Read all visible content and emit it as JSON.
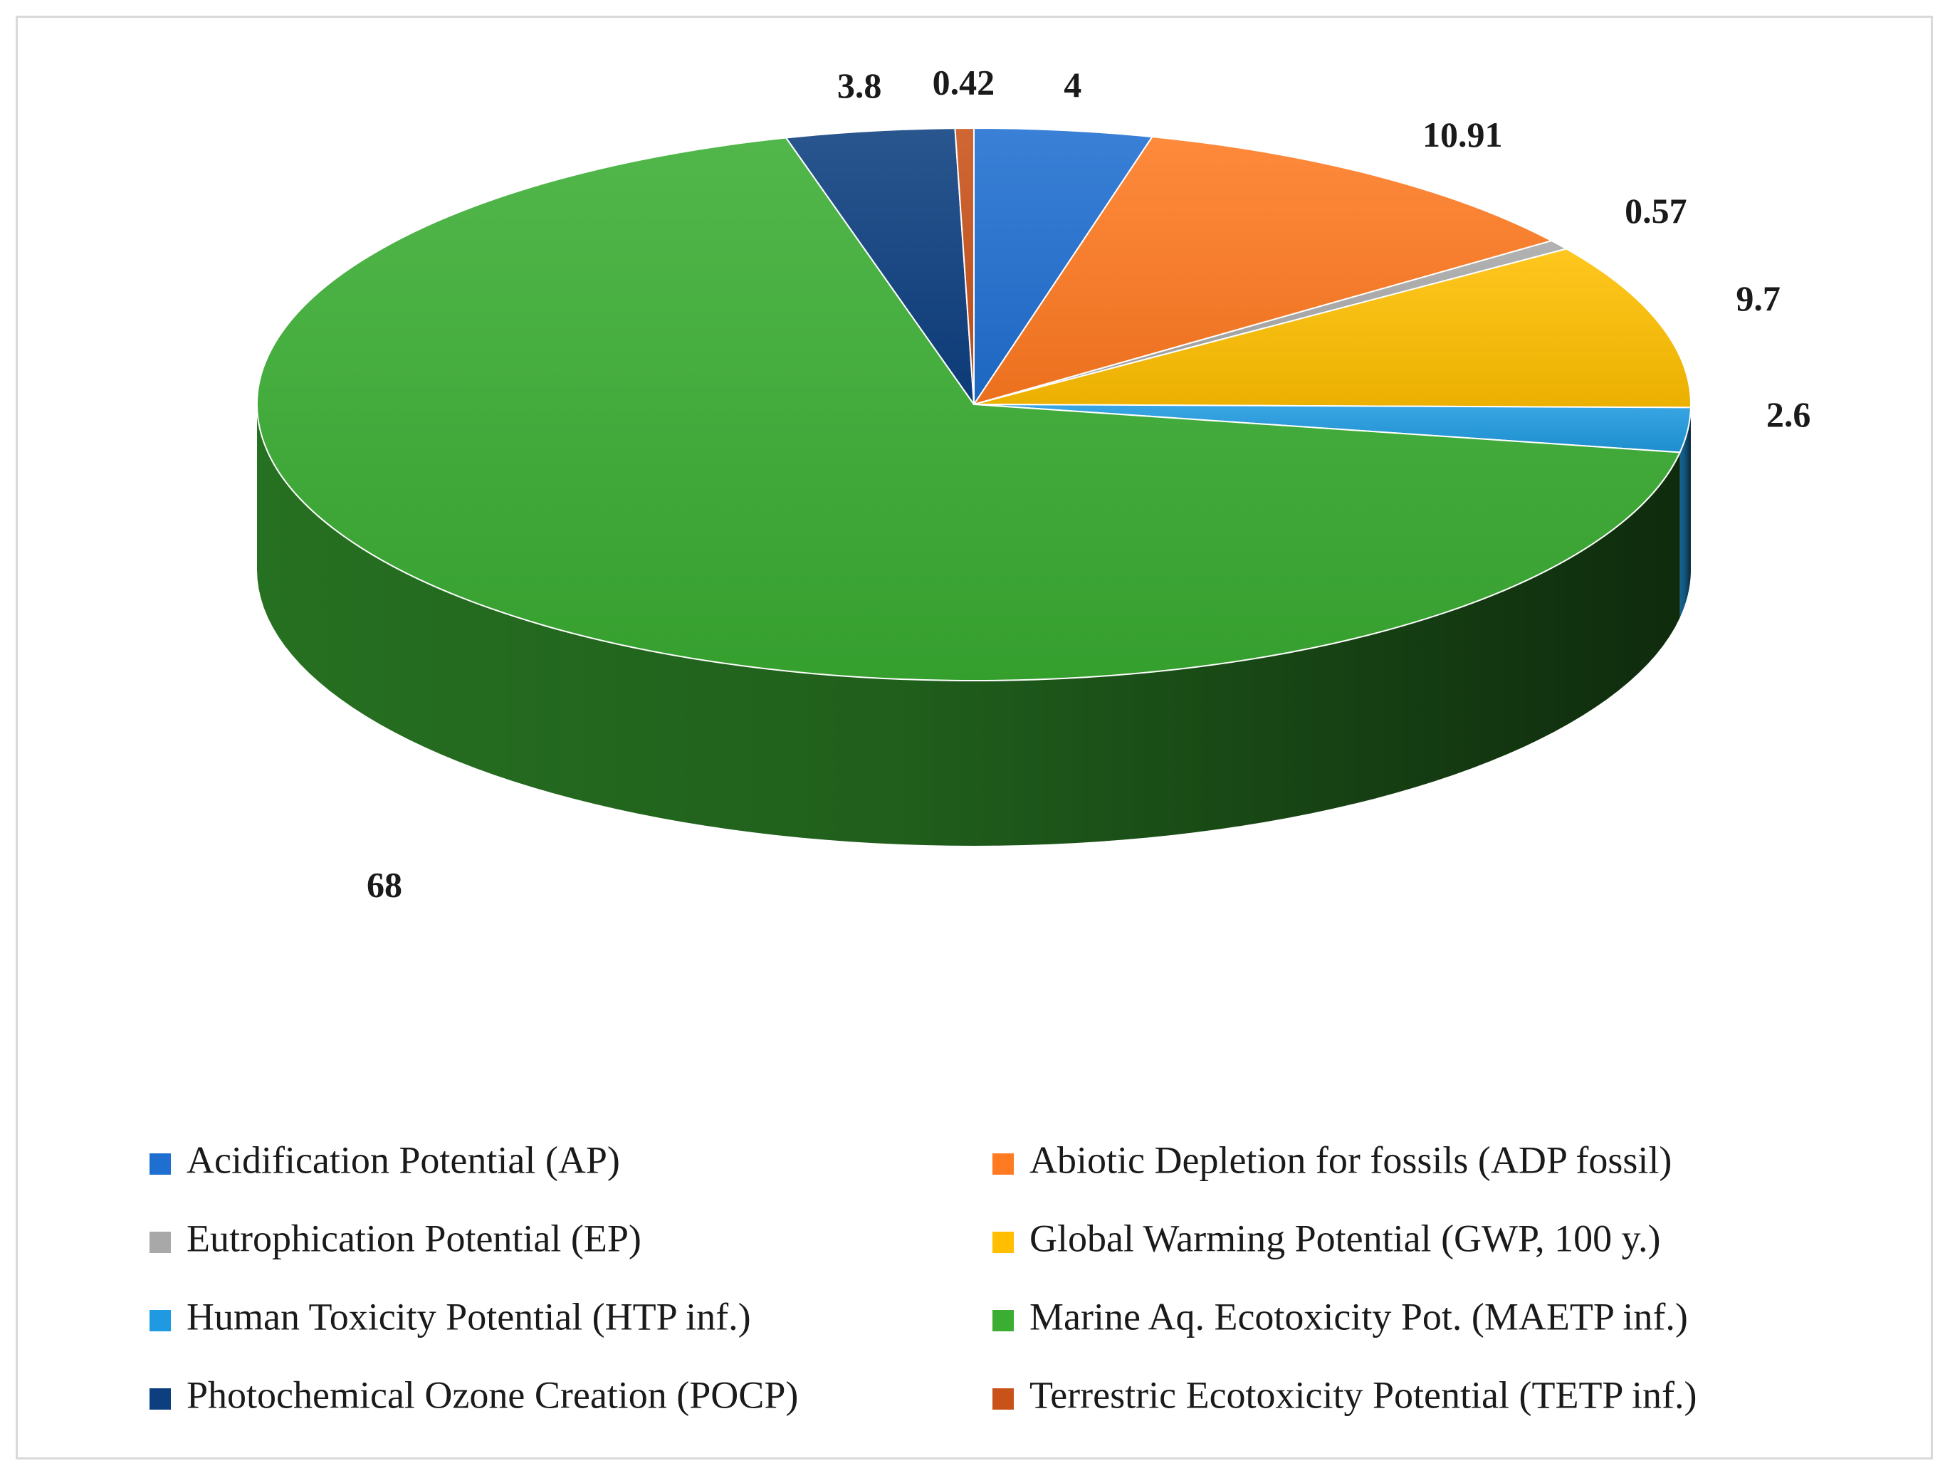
{
  "chart_data": {
    "type": "pie",
    "style": "3d",
    "title": "",
    "series": [
      {
        "name": "Acidification Potential (AP)",
        "value": 4,
        "label": "4",
        "color": "#1f6fd1"
      },
      {
        "name": "Abiotic Depletion for fossils (ADP fossil)",
        "value": 10.91,
        "label": "10.91",
        "color": "#ff7a21"
      },
      {
        "name": "Eutrophication Potential (EP)",
        "value": 0.57,
        "label": "0.57",
        "color": "#a8a8a8"
      },
      {
        "name": "Global Warming Potential (GWP, 100 y.)",
        "value": 9.7,
        "label": "9.7",
        "color": "#ffbf00"
      },
      {
        "name": "Human Toxicity Potential (HTP inf.)",
        "value": 2.6,
        "label": "2.6",
        "color": "#1f9ae0"
      },
      {
        "name": "Marine Aq. Ecotoxicity Pot. (MAETP inf.)",
        "value": 68,
        "label": "68",
        "color": "#3aad32"
      },
      {
        "name": "Photochemical Ozone Creation (POCP)",
        "value": 3.8,
        "label": "3.8",
        "color": "#0d3f80"
      },
      {
        "name": "Terrestric Ecotoxicity Potential (TETP inf.)",
        "value": 0.42,
        "label": "0.42",
        "color": "#c9521a"
      }
    ],
    "legend": {
      "position": "bottom",
      "columns": 2
    }
  }
}
